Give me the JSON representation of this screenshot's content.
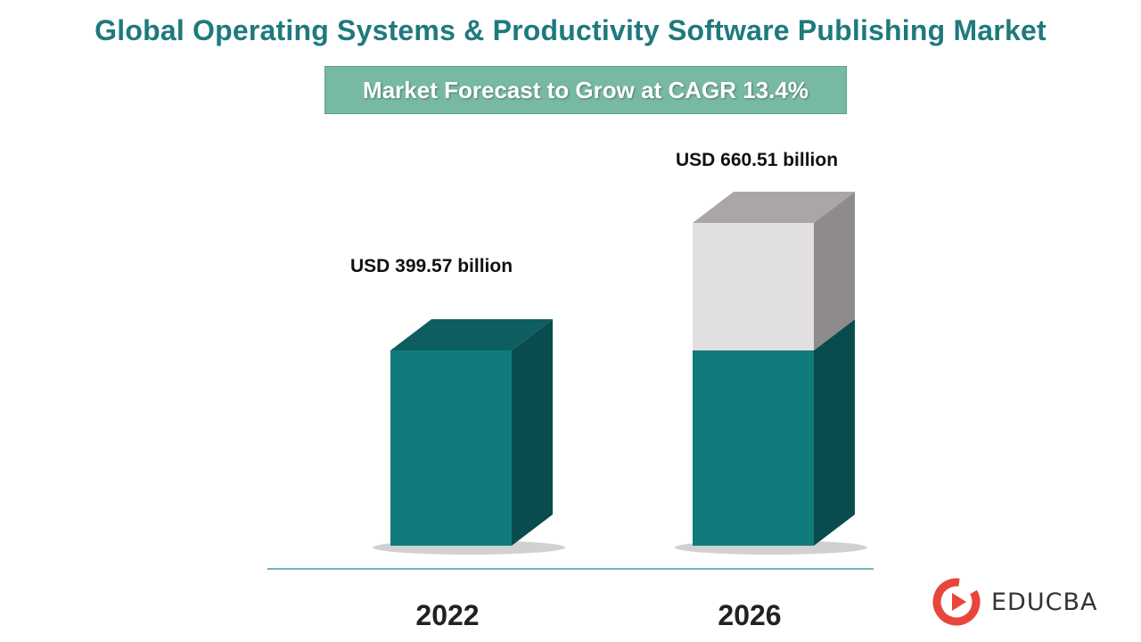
{
  "header": {
    "title": "Global Operating Systems & Productivity Software Publishing Market",
    "subtitle": "Market Forecast to Grow at CAGR 13.4%"
  },
  "chart_data": {
    "type": "bar",
    "title": "Global Operating Systems & Productivity Software Publishing Market",
    "subtitle": "Market Forecast to Grow at CAGR 13.4%",
    "categories": [
      "2022",
      "2026"
    ],
    "values": [
      399.57,
      660.51
    ],
    "unit": "USD billion",
    "data_labels": [
      "USD 399.57 billion",
      "USD 660.51 billion"
    ],
    "cagr_percent": 13.4,
    "style": "3d-bars",
    "colors": {
      "bar_front": "#107a7c",
      "bar_top": "#0d5e60",
      "bar_side": "#0a4c4e",
      "growth_front": "#e2dfe0",
      "growth_top": "#aaa6a7",
      "growth_side": "#8f8b8c",
      "baseline": "#4a9a9c"
    }
  },
  "brand": {
    "name": "EDUCBA",
    "logo_icon": "educba-play-logo-icon"
  }
}
